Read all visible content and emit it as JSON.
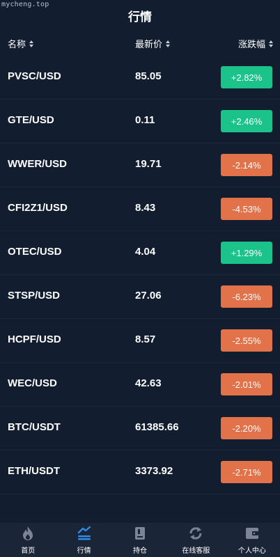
{
  "watermark": "mycheng.top",
  "header": {
    "title": "行情"
  },
  "columns": {
    "name": "名称",
    "price": "最新价",
    "change": "涨跌幅"
  },
  "colors": {
    "up": "#1bc38a",
    "down": "#e1724a",
    "bg": "#121e2f",
    "tab_active": "#2f8ae8",
    "tab_inactive": "#7c8594"
  },
  "rows": [
    {
      "pair": "PVSC/USD",
      "price": "85.05",
      "change": "+2.82%",
      "dir": "up"
    },
    {
      "pair": "GTE/USD",
      "price": "0.11",
      "change": "+2.46%",
      "dir": "up"
    },
    {
      "pair": "WWER/USD",
      "price": "19.71",
      "change": "-2.14%",
      "dir": "down"
    },
    {
      "pair": "CFI2Z1/USD",
      "price": "8.43",
      "change": "-4.53%",
      "dir": "down"
    },
    {
      "pair": "OTEC/USD",
      "price": "4.04",
      "change": "+1.29%",
      "dir": "up"
    },
    {
      "pair": "STSP/USD",
      "price": "27.06",
      "change": "-6.23%",
      "dir": "down"
    },
    {
      "pair": "HCPF/USD",
      "price": "8.57",
      "change": "-2.55%",
      "dir": "down"
    },
    {
      "pair": "WEC/USD",
      "price": "42.63",
      "change": "-2.01%",
      "dir": "down"
    },
    {
      "pair": "BTC/USDT",
      "price": "61385.66",
      "change": "-2.20%",
      "dir": "down"
    },
    {
      "pair": "ETH/USDT",
      "price": "3373.92",
      "change": "-2.71%",
      "dir": "down"
    }
  ],
  "tabs": [
    {
      "label": "首页",
      "icon": "flame-icon",
      "active": false
    },
    {
      "label": "行情",
      "icon": "market-icon",
      "active": true
    },
    {
      "label": "持仓",
      "icon": "position-icon",
      "active": false
    },
    {
      "label": "在线客服",
      "icon": "refresh-icon",
      "active": false
    },
    {
      "label": "个人中心",
      "icon": "wallet-icon",
      "active": false
    }
  ]
}
